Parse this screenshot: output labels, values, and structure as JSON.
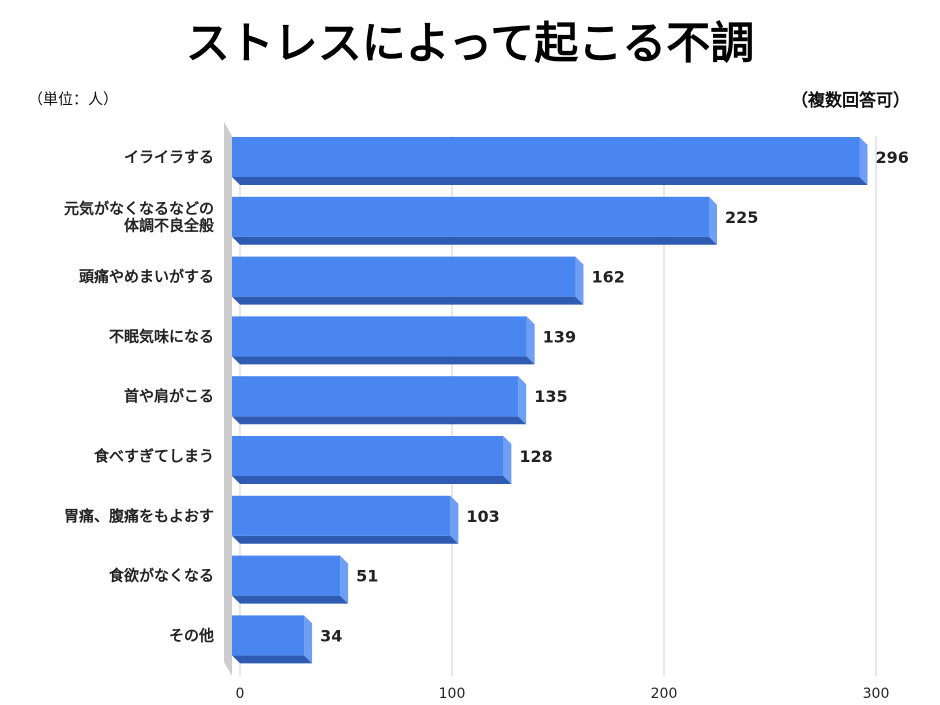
{
  "title": "ストレスによって起こる不調",
  "unit_note": "（単位：人）",
  "answer_note": "（複数回答可）",
  "colors": {
    "bar_front": "#4a86f0",
    "bar_side": "#6f9ff4",
    "bar_bottom": "#2f5bb3",
    "floor": "#cccccc"
  },
  "chart_data": {
    "type": "bar",
    "orientation": "horizontal",
    "title": "ストレスによって起こる不調",
    "categories": [
      [
        "イライラする"
      ],
      [
        "元気がなくなるなどの",
        "体調不良全般"
      ],
      [
        "頭痛やめまいがする"
      ],
      [
        "不眠気味になる"
      ],
      [
        "首や肩がこる"
      ],
      [
        "食べすぎてしまう"
      ],
      [
        "胃痛、腹痛をもよおす"
      ],
      [
        "食欲がなくなる"
      ],
      [
        "その他"
      ]
    ],
    "values": [
      296,
      225,
      162,
      139,
      135,
      128,
      103,
      51,
      34
    ],
    "xlim": [
      0,
      300
    ],
    "xticks": [
      0,
      100,
      200,
      300
    ],
    "grid": true,
    "legend": "none"
  }
}
